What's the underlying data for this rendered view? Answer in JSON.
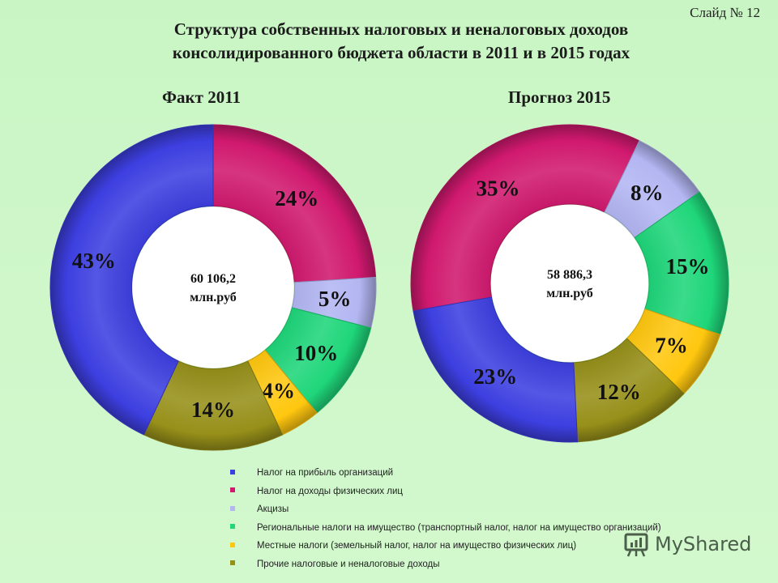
{
  "slide": {
    "number_label": "Слайд № 12"
  },
  "title": {
    "line1": "Структура собственных налоговых и неналоговых доходов",
    "line2": "консолидированного бюджета области в 2011 и в 2015 годах"
  },
  "colors": {
    "profit_tax": "#3d3fe0",
    "income_tax": "#d0196f",
    "excise": "#b3b6f2",
    "regional_property": "#1fd67a",
    "local_taxes": "#ffc70f",
    "other": "#97901a",
    "background": "#cdf6c8"
  },
  "chart_data": [
    {
      "type": "pie",
      "style": "donut",
      "title": "Факт 2011",
      "center_text": [
        "60 106,2",
        "млн.руб"
      ],
      "total_mln_rub": 60106.2,
      "start_angle_deg": 0,
      "categories": [
        "Налог на доходы физических лиц",
        "Акцизы",
        "Региональные налоги на имущество (транспортный налог, налог на имущество организаций)",
        "Местные налоги (земельный налог, налог на имущество физических лиц)",
        "Прочие налоговые и неналоговые доходы",
        "Налог на прибыль организаций"
      ],
      "keys": [
        "income_tax",
        "excise",
        "regional_property",
        "local_taxes",
        "other",
        "profit_tax"
      ],
      "values": [
        24,
        5,
        10,
        4,
        14,
        43
      ],
      "labels": [
        "24%",
        "5%",
        "10%",
        "4%",
        "14%",
        "43%"
      ]
    },
    {
      "type": "pie",
      "style": "donut",
      "title": "Прогноз 2015",
      "center_text": [
        "58 886,3",
        "млн.руб"
      ],
      "total_mln_rub": 58886.3,
      "start_angle_deg": -100,
      "categories": [
        "Налог на доходы физических лиц",
        "Акцизы",
        "Региональные налоги на имущество (транспортный налог, налог на имущество организаций)",
        "Местные налоги (земельный налог, налог на имущество физических лиц)",
        "Прочие налоговые и неналоговые доходы",
        "Налог на прибыль организаций"
      ],
      "keys": [
        "income_tax",
        "excise",
        "regional_property",
        "local_taxes",
        "other",
        "profit_tax"
      ],
      "values": [
        35,
        8,
        15,
        7,
        12,
        23
      ],
      "labels": [
        "35%",
        "8%",
        "15%",
        "7%",
        "12%",
        "23%"
      ]
    }
  ],
  "legend": [
    {
      "key": "profit_tax",
      "label": "Налог на прибыль организаций"
    },
    {
      "key": "income_tax",
      "label": "Налог на доходы физических лиц"
    },
    {
      "key": "excise",
      "label": "Акцизы"
    },
    {
      "key": "regional_property",
      "label": "Региональные налоги на имущество (транспортный налог, налог на имущество организаций)"
    },
    {
      "key": "local_taxes",
      "label": "Местные налоги (земельный  налог, налог на имущество физических лиц)"
    },
    {
      "key": "other",
      "label": "Прочие налоговые и неналоговые доходы"
    }
  ],
  "watermark": {
    "text": "MyShared",
    "icon": "presentation-board-icon"
  }
}
